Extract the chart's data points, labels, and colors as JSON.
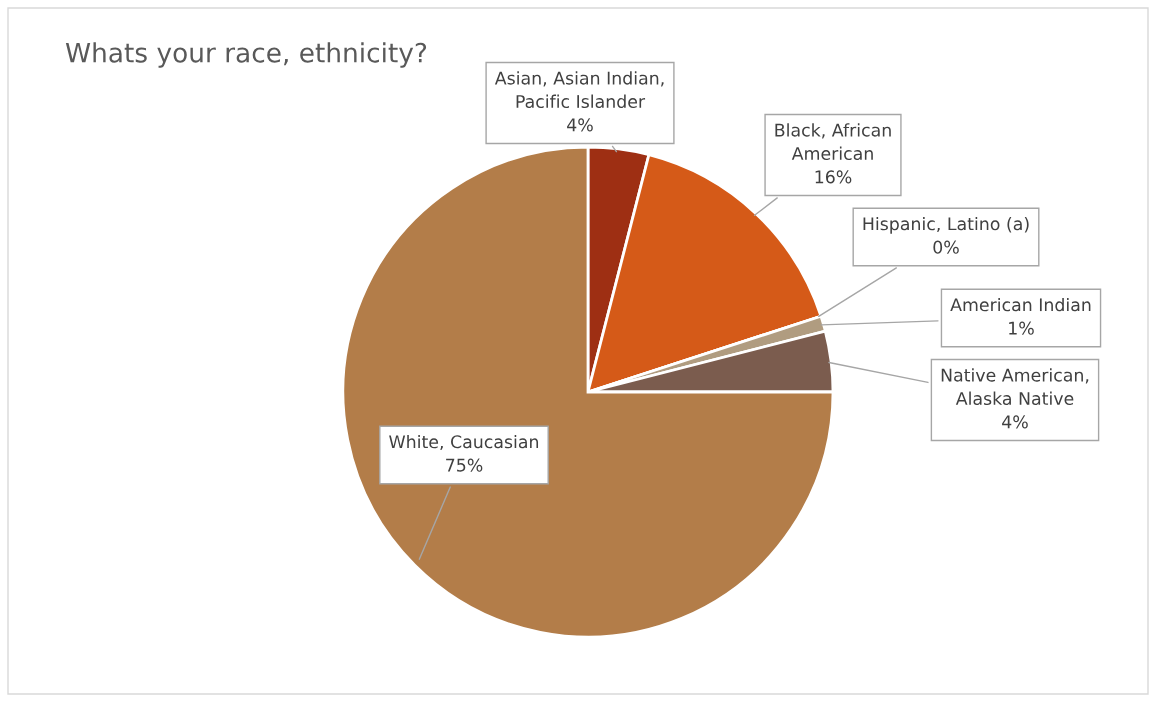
{
  "chart_data": {
    "type": "pie",
    "title": "Whats your race, ethnicity?",
    "categories": [
      "Asian, Asian Indian,\nPacific Islander",
      "Black, African\nAmerican",
      "Hispanic, Latino (a)",
      "American Indian",
      "Native American,\nAlaska Native",
      "White, Caucasian"
    ],
    "values": [
      4,
      16,
      0,
      1,
      4,
      75
    ],
    "value_labels": [
      "4%",
      "16%",
      "0%",
      "1%",
      "4%",
      "75%"
    ],
    "colors": [
      "#9e2f13",
      "#d55a18",
      "#c9a77c",
      "#b09c80",
      "#7b5c4e",
      "#b37d49"
    ]
  }
}
